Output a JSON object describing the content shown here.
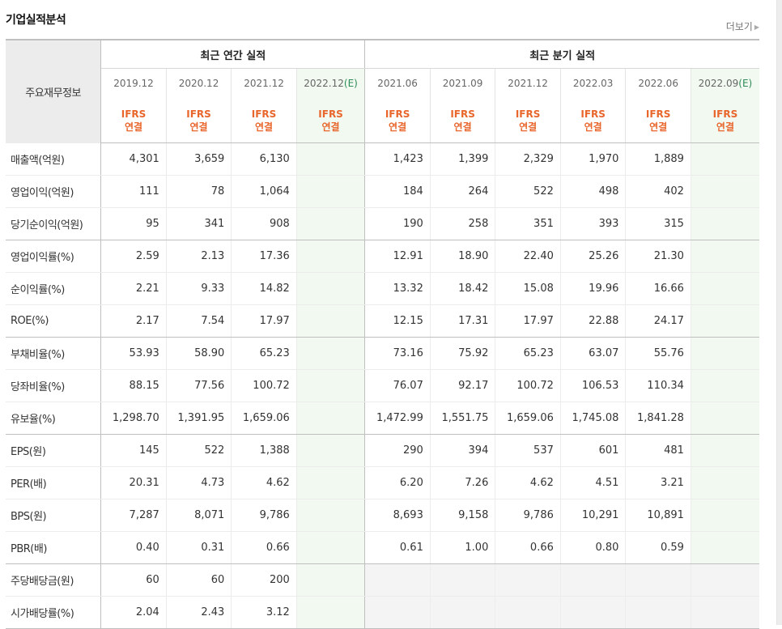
{
  "title": "기업실적분석",
  "more_label": "더보기",
  "table": {
    "row_header": "주요재무정보",
    "annual_group": "최근 연간 실적",
    "quarter_group": "최근 분기 실적",
    "annual_dates": [
      "2019.12",
      "2020.12",
      "2021.12",
      "2022.12"
    ],
    "quarter_dates": [
      "2021.06",
      "2021.09",
      "2021.12",
      "2022.03",
      "2022.06",
      "2022.09"
    ],
    "estimate_mark": "(E)",
    "ifrs_top": "IFRS",
    "ifrs_bottom": "연결",
    "rows": [
      {
        "label": "매출액(억원)",
        "annual": [
          "4,301",
          "3,659",
          "6,130",
          ""
        ],
        "quarter": [
          "1,423",
          "1,399",
          "2,329",
          "1,970",
          "1,889",
          ""
        ]
      },
      {
        "label": "영업이익(억원)",
        "annual": [
          "111",
          "78",
          "1,064",
          ""
        ],
        "quarter": [
          "184",
          "264",
          "522",
          "498",
          "402",
          ""
        ]
      },
      {
        "label": "당기순이익(억원)",
        "annual": [
          "95",
          "341",
          "908",
          ""
        ],
        "quarter": [
          "190",
          "258",
          "351",
          "393",
          "315",
          ""
        ]
      },
      {
        "label": "영업이익률(%)",
        "annual": [
          "2.59",
          "2.13",
          "17.36",
          ""
        ],
        "quarter": [
          "12.91",
          "18.90",
          "22.40",
          "25.26",
          "21.30",
          ""
        ]
      },
      {
        "label": "순이익률(%)",
        "annual": [
          "2.21",
          "9.33",
          "14.82",
          ""
        ],
        "quarter": [
          "13.32",
          "18.42",
          "15.08",
          "19.96",
          "16.66",
          ""
        ]
      },
      {
        "label": "ROE(%)",
        "annual": [
          "2.17",
          "7.54",
          "17.97",
          ""
        ],
        "quarter": [
          "12.15",
          "17.31",
          "17.97",
          "22.88",
          "24.17",
          ""
        ]
      },
      {
        "label": "부채비율(%)",
        "annual": [
          "53.93",
          "58.90",
          "65.23",
          ""
        ],
        "quarter": [
          "73.16",
          "75.92",
          "65.23",
          "63.07",
          "55.76",
          ""
        ]
      },
      {
        "label": "당좌비율(%)",
        "annual": [
          "88.15",
          "77.56",
          "100.72",
          ""
        ],
        "quarter": [
          "76.07",
          "92.17",
          "100.72",
          "106.53",
          "110.34",
          ""
        ]
      },
      {
        "label": "유보율(%)",
        "annual": [
          "1,298.70",
          "1,391.95",
          "1,659.06",
          ""
        ],
        "quarter": [
          "1,472.99",
          "1,551.75",
          "1,659.06",
          "1,745.08",
          "1,841.28",
          ""
        ]
      },
      {
        "label": "EPS(원)",
        "annual": [
          "145",
          "522",
          "1,388",
          ""
        ],
        "quarter": [
          "290",
          "394",
          "537",
          "601",
          "481",
          ""
        ]
      },
      {
        "label": "PER(배)",
        "annual": [
          "20.31",
          "4.73",
          "4.62",
          ""
        ],
        "quarter": [
          "6.20",
          "7.26",
          "4.62",
          "4.51",
          "3.21",
          ""
        ]
      },
      {
        "label": "BPS(원)",
        "annual": [
          "7,287",
          "8,071",
          "9,786",
          ""
        ],
        "quarter": [
          "8,693",
          "9,158",
          "9,786",
          "10,291",
          "10,891",
          ""
        ]
      },
      {
        "label": "PBR(배)",
        "annual": [
          "0.40",
          "0.31",
          "0.66",
          ""
        ],
        "quarter": [
          "0.61",
          "1.00",
          "0.66",
          "0.80",
          "0.59",
          ""
        ]
      },
      {
        "label": "주당배당금(원)",
        "annual": [
          "60",
          "60",
          "200",
          ""
        ],
        "quarter": [
          "",
          "",
          "",
          "",
          "",
          ""
        ]
      },
      {
        "label": "시가배당률(%)",
        "annual": [
          "2.04",
          "2.43",
          "3.12",
          ""
        ],
        "quarter": [
          "",
          "",
          "",
          "",
          "",
          ""
        ]
      }
    ]
  }
}
